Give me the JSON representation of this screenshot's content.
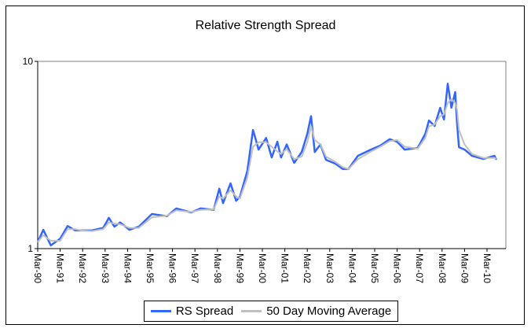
{
  "chart_data": {
    "type": "line",
    "title": "Relative Strength Spread",
    "xlabel": "",
    "ylabel": "",
    "y_scale": "log",
    "ylim": [
      1,
      10
    ],
    "y_ticks": [
      "1",
      "10"
    ],
    "xlim": [
      "1990-03",
      "2010-12"
    ],
    "x_ticks": [
      "Mar-90",
      "Mar-91",
      "Mar-92",
      "Mar-93",
      "Mar-94",
      "Mar-95",
      "Mar-96",
      "Mar-97",
      "Mar-98",
      "Mar-99",
      "Mar-00",
      "Mar-01",
      "Mar-02",
      "Mar-03",
      "Mar-04",
      "Mar-05",
      "Mar-06",
      "Mar-07",
      "Mar-08",
      "Mar-09",
      "Mar-10"
    ],
    "grid": false,
    "legend_placement": "bottom",
    "dates": [
      "1990-03",
      "1990-06",
      "1990-10",
      "1991-03",
      "1991-07",
      "1991-11",
      "1992-02",
      "1992-08",
      "1993-02",
      "1993-05",
      "1993-08",
      "1993-11",
      "1994-04",
      "1994-09",
      "1995-04",
      "1995-12",
      "1996-05",
      "1997-01",
      "1997-06",
      "1998-01",
      "1998-04",
      "1998-06",
      "1998-10",
      "1999-01",
      "1999-03",
      "1999-07",
      "1999-10",
      "2000-01",
      "2000-05",
      "2000-08",
      "2000-11",
      "2001-01",
      "2001-04",
      "2001-08",
      "2001-12",
      "2002-03",
      "2002-05",
      "2002-07",
      "2002-10",
      "2003-01",
      "2003-06",
      "2003-10",
      "2004-01",
      "2004-06",
      "2005-01",
      "2005-06",
      "2005-11",
      "2006-03",
      "2006-07",
      "2007-02",
      "2007-06",
      "2007-08",
      "2007-11",
      "2008-02",
      "2008-04",
      "2008-06",
      "2008-08",
      "2008-10",
      "2008-11",
      "2008-12",
      "2009-03",
      "2009-07",
      "2010-01",
      "2010-07",
      "2010-08"
    ],
    "series": [
      {
        "name": "RS Spread",
        "color": "#3366ff",
        "values": [
          1.08,
          1.26,
          1.04,
          1.13,
          1.32,
          1.25,
          1.25,
          1.25,
          1.29,
          1.46,
          1.31,
          1.38,
          1.26,
          1.31,
          1.53,
          1.49,
          1.64,
          1.56,
          1.64,
          1.61,
          2.09,
          1.75,
          2.23,
          1.8,
          1.89,
          2.6,
          4.3,
          3.38,
          3.9,
          3.07,
          3.72,
          3.07,
          3.6,
          2.87,
          3.28,
          4.1,
          5.1,
          3.28,
          3.6,
          2.98,
          2.84,
          2.66,
          2.66,
          3.13,
          3.38,
          3.55,
          3.84,
          3.72,
          3.38,
          3.45,
          4.1,
          4.83,
          4.52,
          5.65,
          4.89,
          7.6,
          5.65,
          6.85,
          4.65,
          3.48,
          3.38,
          3.13,
          3.01,
          3.13,
          2.98
        ]
      },
      {
        "name": "50 Day Moving Average",
        "color": "#c0c0c0",
        "values": [
          1.08,
          1.18,
          1.1,
          1.1,
          1.27,
          1.27,
          1.25,
          1.24,
          1.27,
          1.38,
          1.36,
          1.35,
          1.29,
          1.29,
          1.47,
          1.5,
          1.6,
          1.57,
          1.61,
          1.62,
          1.9,
          1.85,
          2.05,
          1.9,
          1.85,
          2.4,
          3.5,
          3.7,
          3.7,
          3.5,
          3.3,
          3.2,
          3.4,
          3.0,
          3.1,
          3.7,
          4.5,
          3.8,
          3.6,
          3.1,
          2.9,
          2.72,
          2.66,
          3.0,
          3.3,
          3.5,
          3.75,
          3.8,
          3.5,
          3.42,
          3.9,
          4.5,
          4.6,
          5.1,
          5.2,
          6.0,
          6.3,
          6.0,
          5.5,
          4.3,
          3.6,
          3.2,
          3.05,
          3.05,
          3.02
        ]
      }
    ]
  }
}
